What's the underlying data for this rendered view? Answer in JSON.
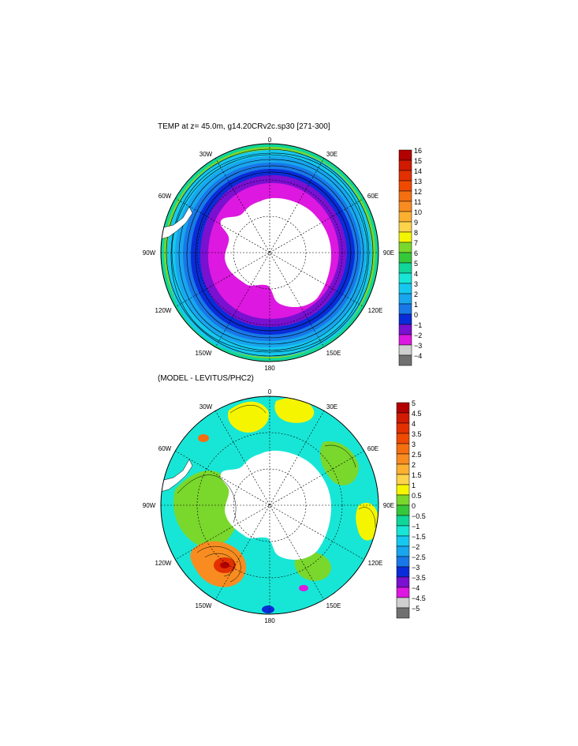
{
  "map1": {
    "title": "TEMP at z=  45.0m, g14.20CRv2c.sp30 [271-300]",
    "lon_labels": [
      "0",
      "30E",
      "60E",
      "90E",
      "120E",
      "150E",
      "180",
      "150W",
      "120W",
      "90W",
      "60W",
      "30W"
    ]
  },
  "map2": {
    "title": "(MODEL - LEVITUS/PHC2)",
    "lon_labels": [
      "0",
      "30E",
      "60E",
      "90E",
      "120E",
      "150E",
      "180",
      "150W",
      "120W",
      "90W",
      "60W",
      "30W"
    ]
  },
  "colorbar1": {
    "labels": [
      "16",
      "15",
      "14",
      "13",
      "12",
      "11",
      "10",
      "9",
      "8",
      "7",
      "6",
      "5",
      "4",
      "3",
      "2",
      "1",
      "0",
      "−1",
      "−2",
      "−3",
      "−4"
    ],
    "colors": [
      "#b30000",
      "#d11a00",
      "#e33000",
      "#f04a00",
      "#f56f10",
      "#f88c20",
      "#fbb030",
      "#fcd34a",
      "#f5f500",
      "#7ad72c",
      "#35c83a",
      "#10d69a",
      "#17e6d6",
      "#16c8f0",
      "#18a6ee",
      "#1878e8",
      "#0a2cd8",
      "#7a10d0",
      "#dd18e0",
      "#cfcfcf",
      "#707070"
    ]
  },
  "colorbar2": {
    "labels": [
      "5",
      "4.5",
      "4",
      "3.5",
      "3",
      "2.5",
      "2",
      "1.5",
      "1",
      "0.5",
      "0",
      "−0.5",
      "−1",
      "−1.5",
      "−2",
      "−2.5",
      "−3",
      "−3.5",
      "−4",
      "−4.5",
      "−5"
    ],
    "colors": [
      "#b30000",
      "#d11a00",
      "#e33000",
      "#f04a00",
      "#f56f10",
      "#f88c20",
      "#fbb030",
      "#fcd34a",
      "#f5f500",
      "#7ad72c",
      "#35c83a",
      "#10d69a",
      "#17e6d6",
      "#16c8f0",
      "#18a6ee",
      "#1878e8",
      "#0a2cd8",
      "#7a10d0",
      "#dd18e0",
      "#cfcfcf",
      "#707070"
    ]
  }
}
